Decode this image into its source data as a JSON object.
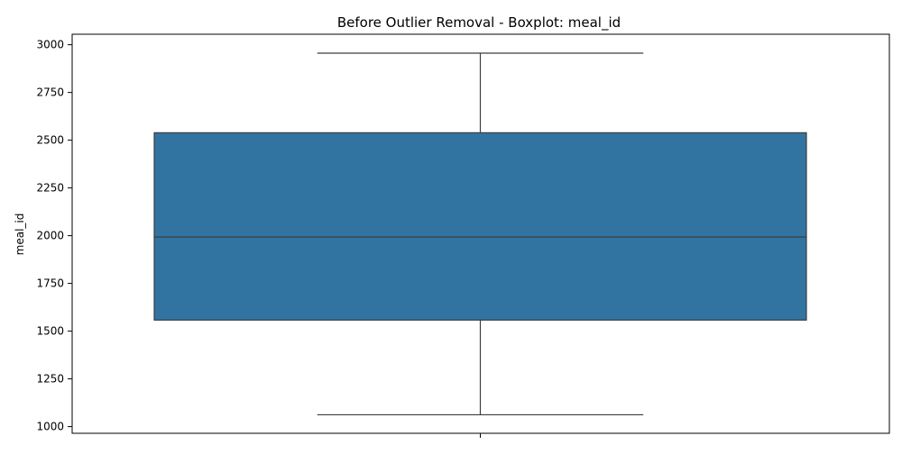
{
  "chart_data": {
    "type": "boxplot",
    "title": "Before Outlier Removal - Boxplot: meal_id",
    "xlabel": "",
    "ylabel": "meal_id",
    "ylim": [
      965,
      3055
    ],
    "yticks": [
      1000,
      1250,
      1500,
      1750,
      2000,
      2250,
      2500,
      2750,
      3000
    ],
    "grid": false,
    "box": {
      "whisker_low": 1062,
      "q1": 1558,
      "median": 1993,
      "q3": 2539,
      "whisker_high": 2956,
      "fill_color": "#3274a1",
      "line_color": "#3d3d3d"
    }
  }
}
